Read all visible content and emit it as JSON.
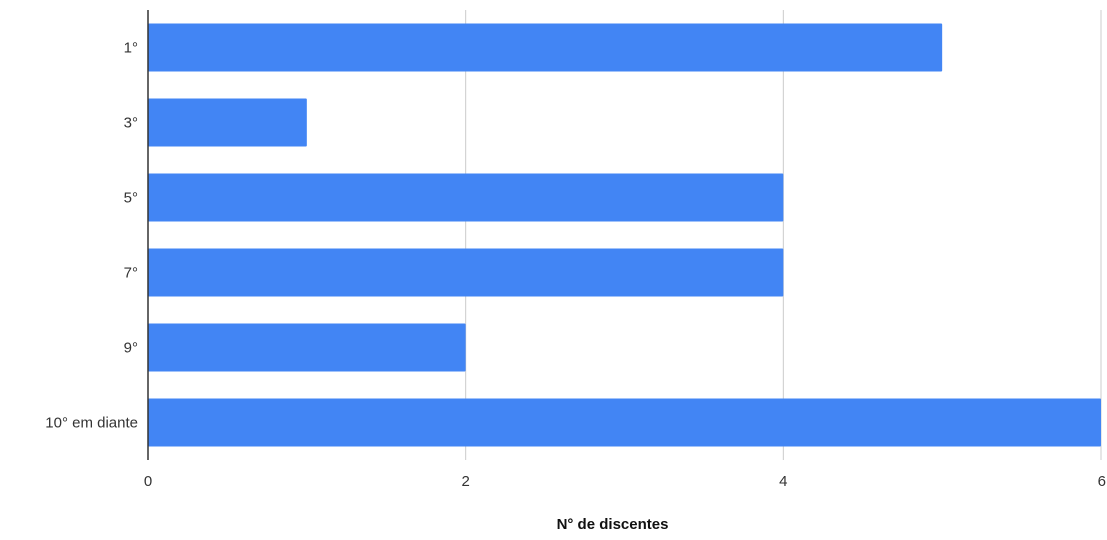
{
  "chart_data": {
    "type": "bar",
    "orientation": "horizontal",
    "categories": [
      "1°",
      "3°",
      "5°",
      "7°",
      "9°",
      "10° em diante"
    ],
    "values": [
      5,
      1,
      4,
      4,
      2,
      6
    ],
    "xlabel": "N° de discentes",
    "ylabel": "",
    "xlim": [
      0,
      6
    ],
    "xticks": [
      0,
      2,
      4,
      6
    ],
    "grid": true,
    "bar_color": "#4285F4",
    "grid_color": "#CCCCCC",
    "axis_color": "#333333"
  }
}
